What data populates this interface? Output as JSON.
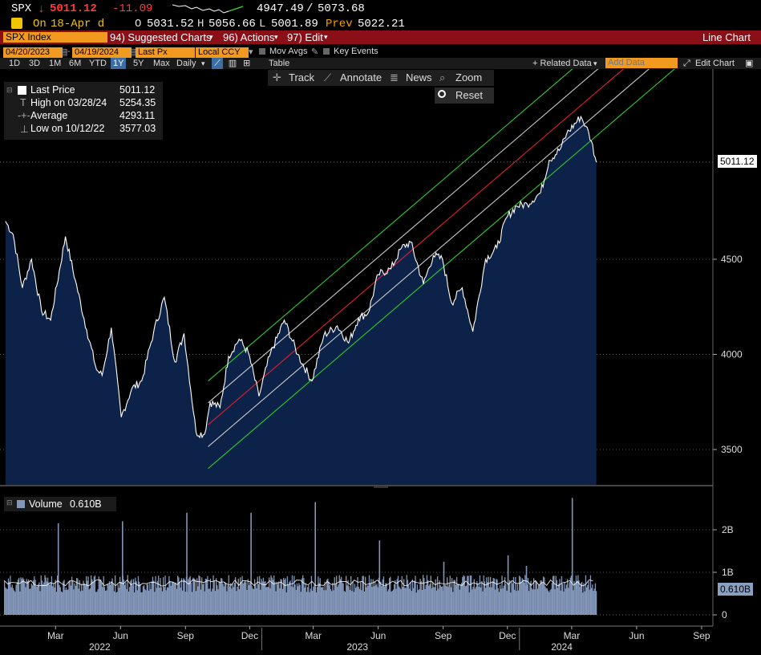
{
  "header": {
    "ticker": "SPX",
    "arrow": "↓",
    "last": "5011.12",
    "change": "-11.09",
    "range_low": "4947.49",
    "range_sep": "/",
    "range_high": "5073.68",
    "on_label": "On",
    "date_label": "18-Apr d",
    "open_label": "O",
    "open": "5031.52",
    "high_label": "H",
    "high": "5056.66",
    "low_label": "L",
    "low": "5001.89",
    "prev_label": "Prev",
    "prev": "5022.21"
  },
  "menubar": {
    "security": "SPX Index",
    "suggested": "94) Suggested Charts",
    "actions": "96) Actions",
    "edit": "97) Edit",
    "chart_type": "Line Chart"
  },
  "options": {
    "start_date": "04/20/2023",
    "end_date": "04/19/2024",
    "field": "Last Px",
    "currency": "Local CCY",
    "mov_avgs": "Mov Avgs",
    "key_events": "Key Events"
  },
  "toolbar": {
    "periods": [
      "1D",
      "3D",
      "1M",
      "6M",
      "YTD",
      "1Y",
      "5Y",
      "Max"
    ],
    "selected_period": "1Y",
    "frequency": "Daily",
    "table": "Table",
    "related_data": "+ Related Data",
    "add_data_placeholder": "Add Data",
    "edit_chart": "Edit Chart"
  },
  "chart_tools": {
    "track": "Track",
    "annotate": "Annotate",
    "news": "News",
    "zoom": "Zoom",
    "reset": "Reset"
  },
  "legend": {
    "last_price_label": "Last Price",
    "last_price": "5011.12",
    "high_label": "High on 03/28/24",
    "high": "5254.35",
    "average_label": "Average",
    "average": "4293.11",
    "low_label": "Low on 10/12/22",
    "low": "3577.03"
  },
  "volume_legend": {
    "label": "Volume",
    "value": "0.610B"
  },
  "price_tag": "5011.12",
  "volume_tag": "0.610B",
  "colors": {
    "price_line": "#ffffff",
    "area_fill": "#0c2248",
    "regression": "#e0212b",
    "channel_inner": "#c8c8c8",
    "channel_outer": "#2ecc2e",
    "volume": "#8196b8",
    "menubar": "#8b0f17",
    "field": "#f29a1f"
  },
  "chart_data": {
    "type": "line",
    "price": {
      "y_ticks": [
        3500,
        4000,
        4500
      ],
      "dates": [
        "2022-01-03",
        "2022-01-14",
        "2022-01-27",
        "2022-02-09",
        "2022-02-23",
        "2022-03-08",
        "2022-03-29",
        "2022-04-12",
        "2022-04-28",
        "2022-05-12",
        "2022-05-20",
        "2022-06-02",
        "2022-06-16",
        "2022-07-01",
        "2022-07-15",
        "2022-08-01",
        "2022-08-16",
        "2022-08-31",
        "2022-09-13",
        "2022-09-30",
        "2022-10-12",
        "2022-10-20",
        "2022-11-03",
        "2022-11-15",
        "2022-11-30",
        "2022-12-13",
        "2022-12-28",
        "2023-01-12",
        "2023-02-02",
        "2023-02-21",
        "2023-03-13",
        "2023-03-30",
        "2023-04-18",
        "2023-05-04",
        "2023-05-18",
        "2023-06-01",
        "2023-06-15",
        "2023-07-03",
        "2023-07-18",
        "2023-07-31",
        "2023-08-18",
        "2023-09-01",
        "2023-09-14",
        "2023-09-27",
        "2023-10-12",
        "2023-10-27",
        "2023-11-14",
        "2023-11-30",
        "2023-12-14",
        "2023-12-28",
        "2024-01-12",
        "2024-01-31",
        "2024-02-12",
        "2024-02-28",
        "2024-03-08",
        "2024-03-28",
        "2024-04-04",
        "2024-04-12",
        "2024-04-19"
      ],
      "values": [
        4700,
        4630,
        4350,
        4500,
        4230,
        4180,
        4620,
        4390,
        4130,
        3920,
        3890,
        4140,
        3670,
        3820,
        3860,
        4120,
        4300,
        3960,
        4110,
        3590,
        3580,
        3750,
        3720,
        3990,
        4080,
        4010,
        3780,
        3990,
        4180,
        4000,
        3860,
        4100,
        4150,
        4060,
        4190,
        4220,
        4420,
        4450,
        4560,
        4590,
        4370,
        4520,
        4500,
        4270,
        4350,
        4120,
        4500,
        4560,
        4720,
        4780,
        4790,
        4850,
        5020,
        5080,
        5160,
        5250,
        5200,
        5120,
        5010
      ]
    },
    "regression_channel": {
      "start": "2022-09-30",
      "end": "2024-09-30",
      "center": [
        3630,
        5900
      ],
      "offsets": [
        -230,
        -115,
        115,
        230
      ]
    },
    "volume": {
      "y_ticks_label": [
        "0",
        "1B",
        "2B"
      ],
      "y_ticks": [
        0,
        1,
        2
      ],
      "last": 0.61,
      "typical": 0.75,
      "spikes": [
        {
          "date": "2022-03-18",
          "value": 2.15
        },
        {
          "date": "2022-06-17",
          "value": 2.2
        },
        {
          "date": "2022-09-16",
          "value": 2.4
        },
        {
          "date": "2022-12-16",
          "value": 2.4
        },
        {
          "date": "2023-03-17",
          "value": 2.65
        },
        {
          "date": "2023-06-16",
          "value": 1.75
        },
        {
          "date": "2023-09-15",
          "value": 1.25
        },
        {
          "date": "2023-12-15",
          "value": 1.4
        },
        {
          "date": "2024-03-15",
          "value": 2.75
        },
        {
          "date": "2024-01-10",
          "value": 1.15
        }
      ]
    },
    "x_axis": {
      "months": [
        "Mar",
        "Jun",
        "Sep",
        "Dec",
        "Mar",
        "Jun",
        "Sep",
        "Dec",
        "Mar",
        "Jun",
        "Sep"
      ],
      "years": [
        "2022",
        "2023",
        "2024"
      ]
    },
    "legend_position": "top-left",
    "grid": true
  }
}
